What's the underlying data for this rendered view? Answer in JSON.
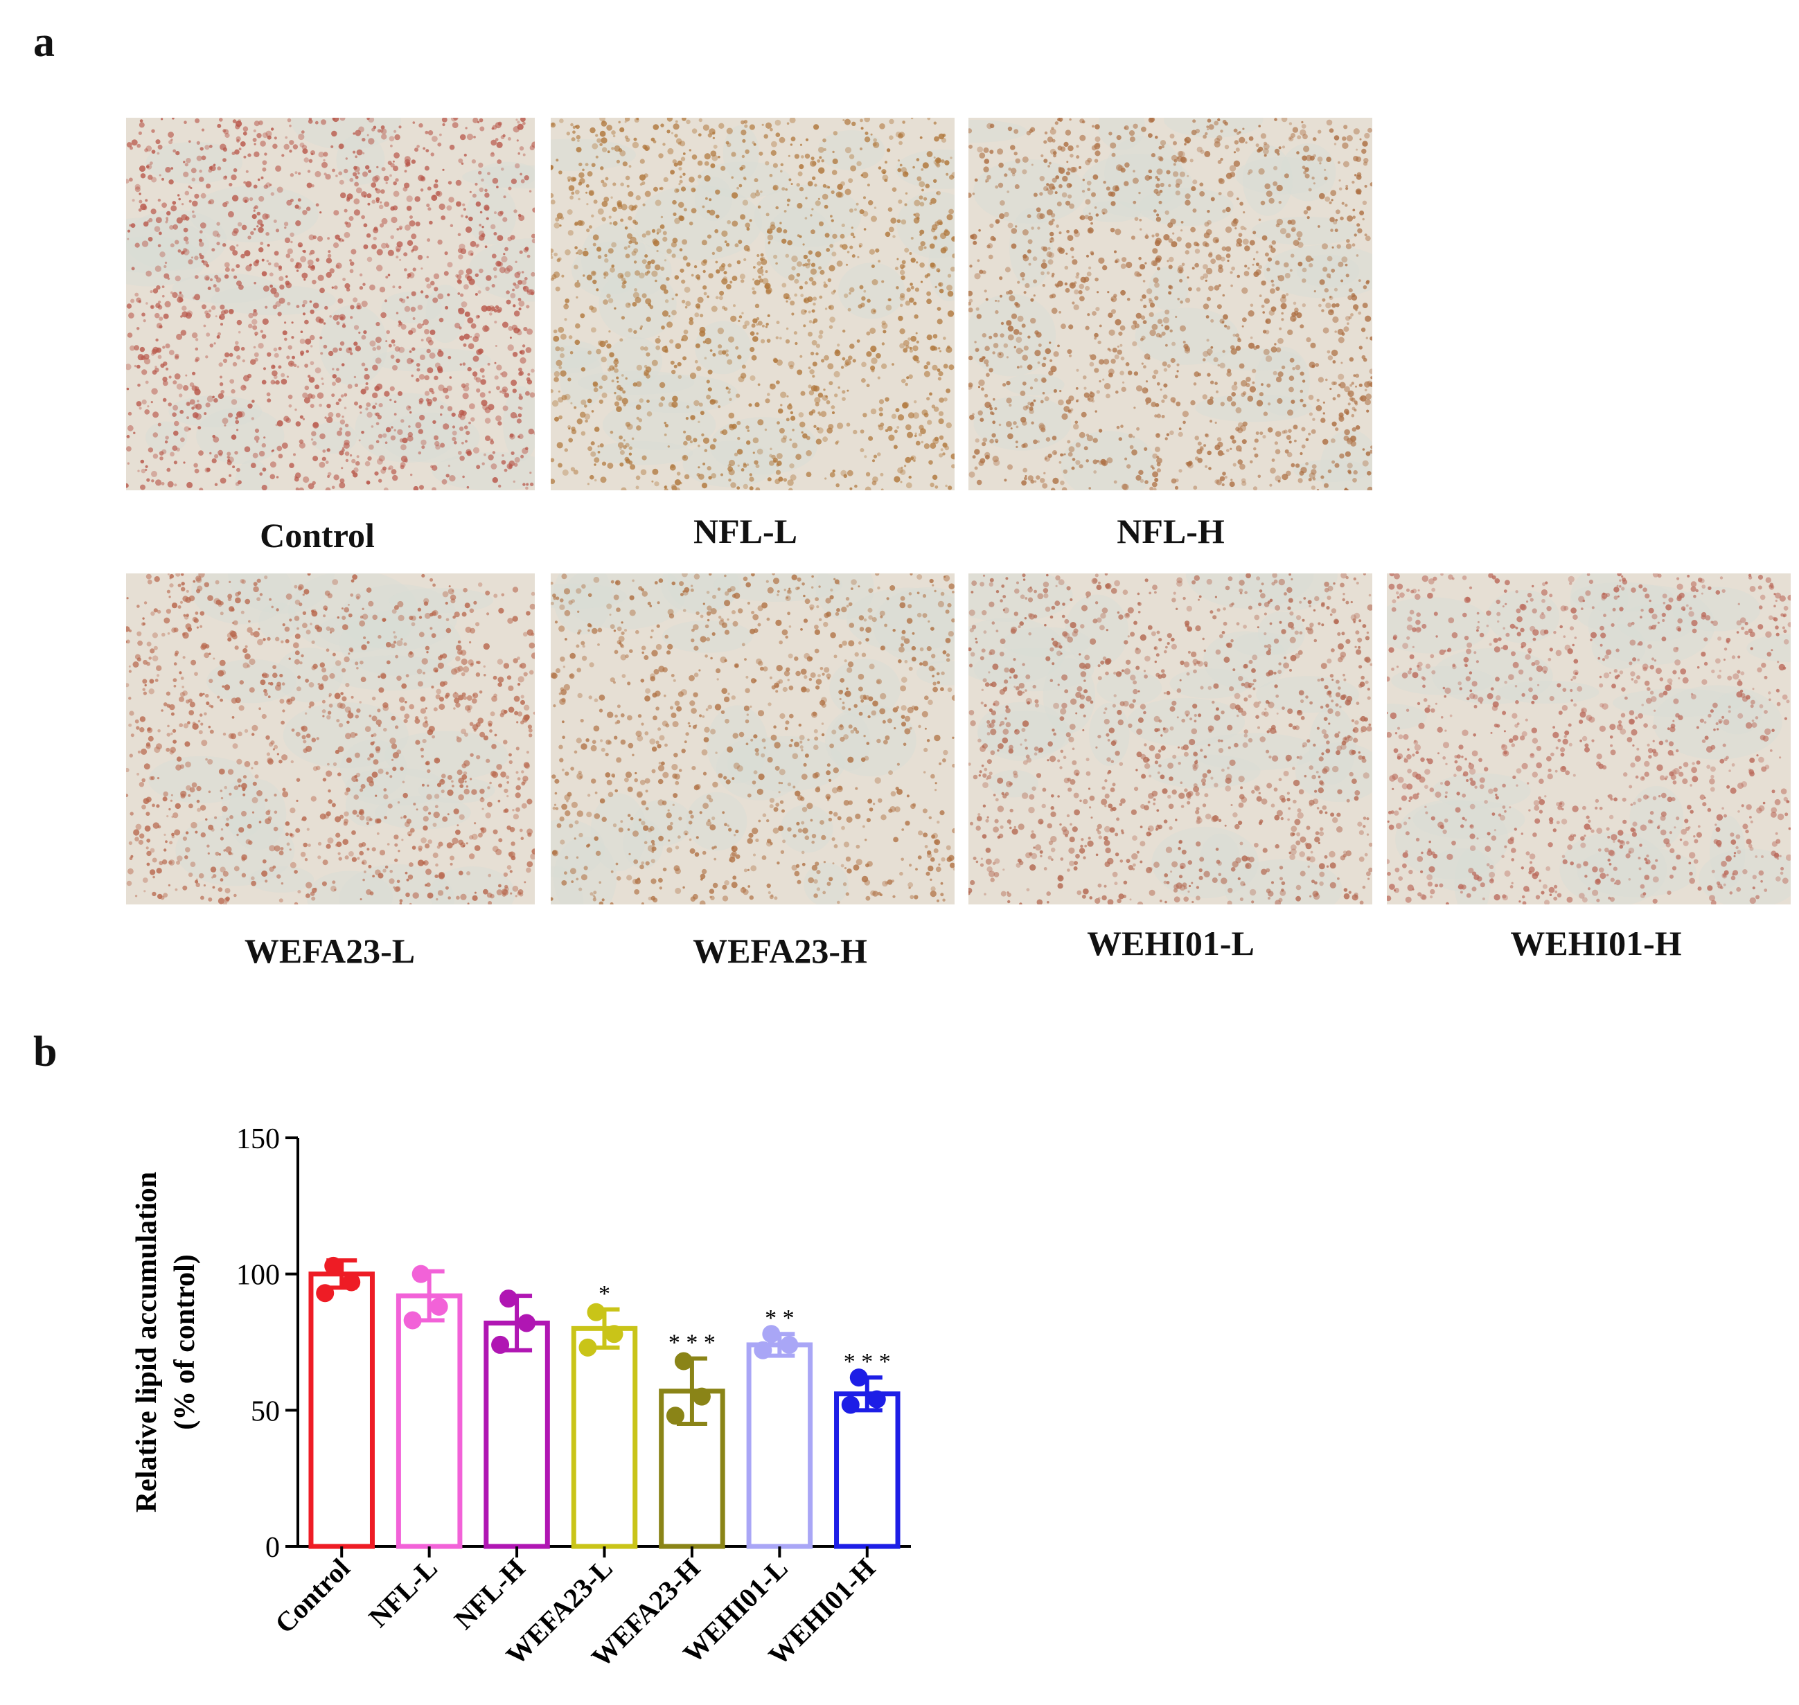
{
  "figure": {
    "panel_a_label": "a",
    "panel_b_label": "b",
    "micrographs": [
      {
        "label": "Control",
        "tint": "#b8574a",
        "density": 0.6
      },
      {
        "label": "NFL-L",
        "tint": "#b0773c",
        "density": 0.55
      },
      {
        "label": "NFL-H",
        "tint": "#ad7044",
        "density": 0.55
      },
      {
        "label": "WEFA23-L",
        "tint": "#b8684e",
        "density": 0.45
      },
      {
        "label": "WEFA23-H",
        "tint": "#b07245",
        "density": 0.38
      },
      {
        "label": "WEHI01-L",
        "tint": "#b46a53",
        "density": 0.45
      },
      {
        "label": "WEHI01-H",
        "tint": "#bb6b5c",
        "density": 0.42
      }
    ]
  },
  "chart_data": {
    "type": "bar",
    "title": "",
    "ylabel_line1": "Relative lipid accumulation",
    "ylabel_line2": "(% of control)",
    "ylim": [
      0,
      150
    ],
    "yticks": [
      0,
      50,
      100,
      150
    ],
    "categories": [
      "Control",
      "NFL-L",
      "NFL-H",
      "WEFA23-L",
      "WEFA23-H",
      "WEHI01-L",
      "WEHI01-H"
    ],
    "values": [
      100,
      92,
      82,
      80,
      57,
      74,
      56
    ],
    "errors": [
      5,
      9,
      10,
      7,
      12,
      4,
      6
    ],
    "points": [
      [
        103,
        97,
        93
      ],
      [
        100,
        88,
        83
      ],
      [
        91,
        82,
        74
      ],
      [
        86,
        78,
        73
      ],
      [
        68,
        55,
        48
      ],
      [
        78,
        74,
        72
      ],
      [
        62,
        54,
        52
      ]
    ],
    "significance": [
      "",
      "",
      "",
      "*",
      "* * *",
      "* *",
      "* * *"
    ],
    "colors": [
      "#ee1c25",
      "#f262d8",
      "#b016b3",
      "#c9c418",
      "#8a8417",
      "#a9a6f6",
      "#1d1ee6"
    ]
  }
}
